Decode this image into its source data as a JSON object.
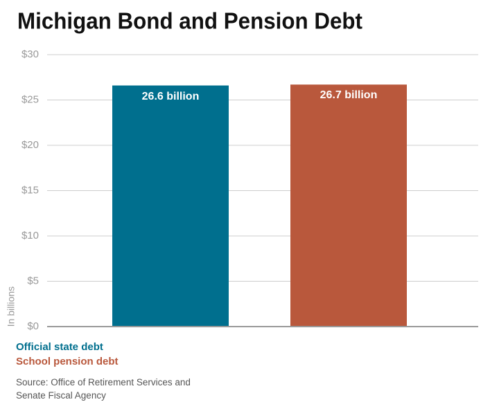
{
  "chart_data": {
    "type": "bar",
    "title": "Michigan Bond and Pension Debt",
    "categories": [
      "Official state debt",
      "School pension debt"
    ],
    "values": [
      26.6,
      26.7
    ],
    "value_labels": [
      "26.6 billion",
      "26.7 billion"
    ],
    "colors": [
      "#006f8e",
      "#b9583c"
    ],
    "ylabel": "In billions",
    "ylim": [
      0,
      30
    ],
    "yticks": [
      {
        "value": 0,
        "label": "$0"
      },
      {
        "value": 5,
        "label": "$5"
      },
      {
        "value": 10,
        "label": "$10"
      },
      {
        "value": 15,
        "label": "$15"
      },
      {
        "value": 20,
        "label": "$20"
      },
      {
        "value": 25,
        "label": "$25"
      },
      {
        "value": 30,
        "label": "$30"
      }
    ],
    "grid": true,
    "source": "Source: Office of Retirement Services and Senate Fiscal Agency"
  }
}
